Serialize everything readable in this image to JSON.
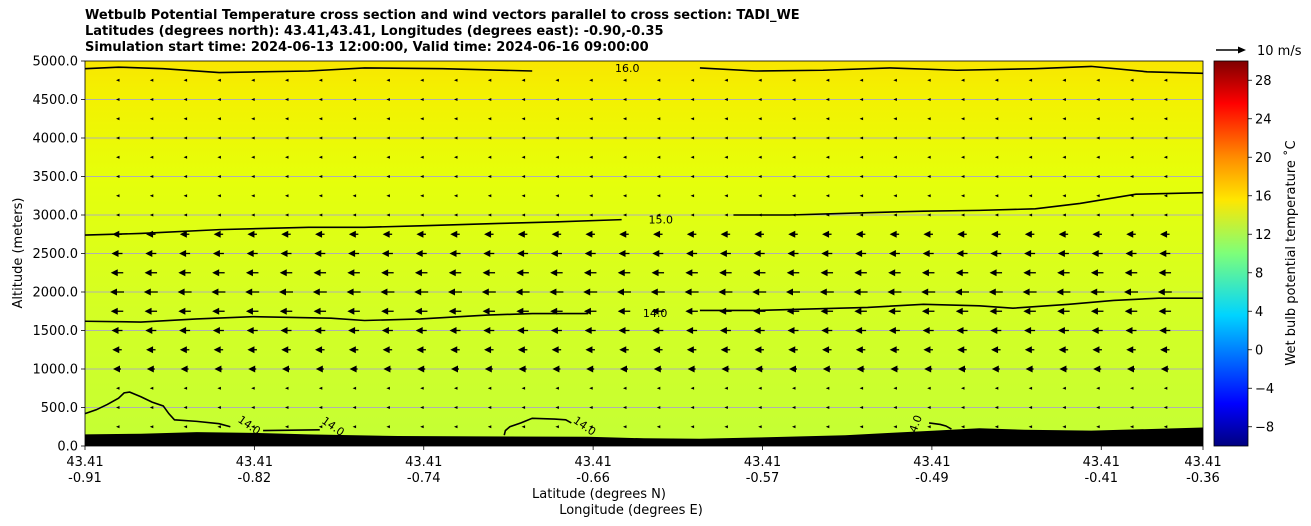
{
  "chart_data": {
    "type": "heatmap",
    "title_lines": [
      "Wetbulb Potential Temperature cross section and wind vectors parallel to cross section: TADI_WE",
      "Latitudes (degrees north): 43.41,43.41, Longitudes (degrees east): -0.90,-0.35",
      "Simulation start time: 2024-06-13 12:00:00, Valid time: 2024-06-16 09:00:00"
    ],
    "ylabel": "Altitude (meters)",
    "xlabel_lines": [
      "Latitude (degrees N)",
      "Longitude (degrees E)"
    ],
    "ylim": [
      0,
      5000
    ],
    "y_ticks": [
      "0.0",
      "500.0",
      "1000.0",
      "1500.0",
      "2000.0",
      "2500.0",
      "3000.0",
      "3500.0",
      "4000.0",
      "4500.0",
      "5000.0"
    ],
    "x_ticks": [
      {
        "lat": "43.41",
        "lon": "-0.91"
      },
      {
        "lat": "43.41",
        "lon": "-0.82"
      },
      {
        "lat": "43.41",
        "lon": "-0.74"
      },
      {
        "lat": "43.41",
        "lon": "-0.66"
      },
      {
        "lat": "43.41",
        "lon": "-0.57"
      },
      {
        "lat": "43.41",
        "lon": "-0.49"
      },
      {
        "lat": "43.41",
        "lon": "-0.41"
      },
      {
        "lat": "43.41",
        "lon": "-0.36"
      }
    ],
    "grid": "horizontal",
    "colorbar": {
      "label": "Wet bulb potential temperature ˚C",
      "range": [
        -10,
        30
      ],
      "ticks": [
        "−8",
        "−4",
        "0",
        "4",
        "8",
        "12",
        "16",
        "20",
        "24",
        "28"
      ]
    },
    "contours": [
      {
        "label": "16.0",
        "level": 16.0,
        "points": [
          [
            0,
            4900
          ],
          [
            0.03,
            4920
          ],
          [
            0.07,
            4900
          ],
          [
            0.12,
            4850
          ],
          [
            0.2,
            4870
          ],
          [
            0.25,
            4910
          ],
          [
            0.32,
            4900
          ],
          [
            0.4,
            4870
          ],
          [
            0.5,
            4910
          ],
          [
            0.55,
            4910
          ],
          [
            0.6,
            4870
          ],
          [
            0.66,
            4880
          ],
          [
            0.72,
            4910
          ],
          [
            0.78,
            4880
          ],
          [
            0.85,
            4900
          ],
          [
            0.9,
            4930
          ],
          [
            0.95,
            4860
          ],
          [
            1,
            4840
          ]
        ]
      },
      {
        "label": "15.0",
        "level": 15.0,
        "points": [
          [
            0,
            2740
          ],
          [
            0.05,
            2760
          ],
          [
            0.12,
            2810
          ],
          [
            0.2,
            2840
          ],
          [
            0.25,
            2840
          ],
          [
            0.3,
            2860
          ],
          [
            0.37,
            2890
          ],
          [
            0.42,
            2910
          ],
          [
            0.48,
            2940
          ],
          [
            0.52,
            2980
          ],
          [
            0.58,
            3000
          ],
          [
            0.63,
            3000
          ],
          [
            0.7,
            3030
          ],
          [
            0.75,
            3050
          ],
          [
            0.8,
            3060
          ],
          [
            0.85,
            3080
          ],
          [
            0.89,
            3150
          ],
          [
            0.94,
            3270
          ],
          [
            1,
            3290
          ]
        ]
      },
      {
        "label": "14.0",
        "level": 14.0,
        "points": [
          [
            0,
            1620
          ],
          [
            0.05,
            1610
          ],
          [
            0.1,
            1650
          ],
          [
            0.15,
            1680
          ],
          [
            0.22,
            1660
          ],
          [
            0.25,
            1630
          ],
          [
            0.3,
            1650
          ],
          [
            0.36,
            1700
          ],
          [
            0.4,
            1720
          ],
          [
            0.45,
            1720
          ],
          [
            0.5,
            1730
          ],
          [
            0.55,
            1760
          ],
          [
            0.6,
            1760
          ],
          [
            0.65,
            1780
          ],
          [
            0.7,
            1800
          ],
          [
            0.75,
            1840
          ],
          [
            0.8,
            1820
          ],
          [
            0.83,
            1790
          ],
          [
            0.88,
            1840
          ],
          [
            0.92,
            1890
          ],
          [
            0.96,
            1920
          ],
          [
            1,
            1920
          ]
        ]
      }
    ],
    "near_ground_contour_labels": [
      "14.0",
      "14.0",
      "14.0",
      "14.0"
    ],
    "terrain_m": [
      [
        0,
        150
      ],
      [
        0.05,
        160
      ],
      [
        0.1,
        180
      ],
      [
        0.15,
        170
      ],
      [
        0.2,
        150
      ],
      [
        0.28,
        130
      ],
      [
        0.35,
        125
      ],
      [
        0.45,
        120
      ],
      [
        0.5,
        100
      ],
      [
        0.55,
        95
      ],
      [
        0.6,
        110
      ],
      [
        0.68,
        140
      ],
      [
        0.72,
        170
      ],
      [
        0.76,
        200
      ],
      [
        0.8,
        230
      ],
      [
        0.84,
        210
      ],
      [
        0.9,
        200
      ],
      [
        0.95,
        220
      ],
      [
        1,
        240
      ]
    ],
    "wind_legend": "10 m/s"
  }
}
